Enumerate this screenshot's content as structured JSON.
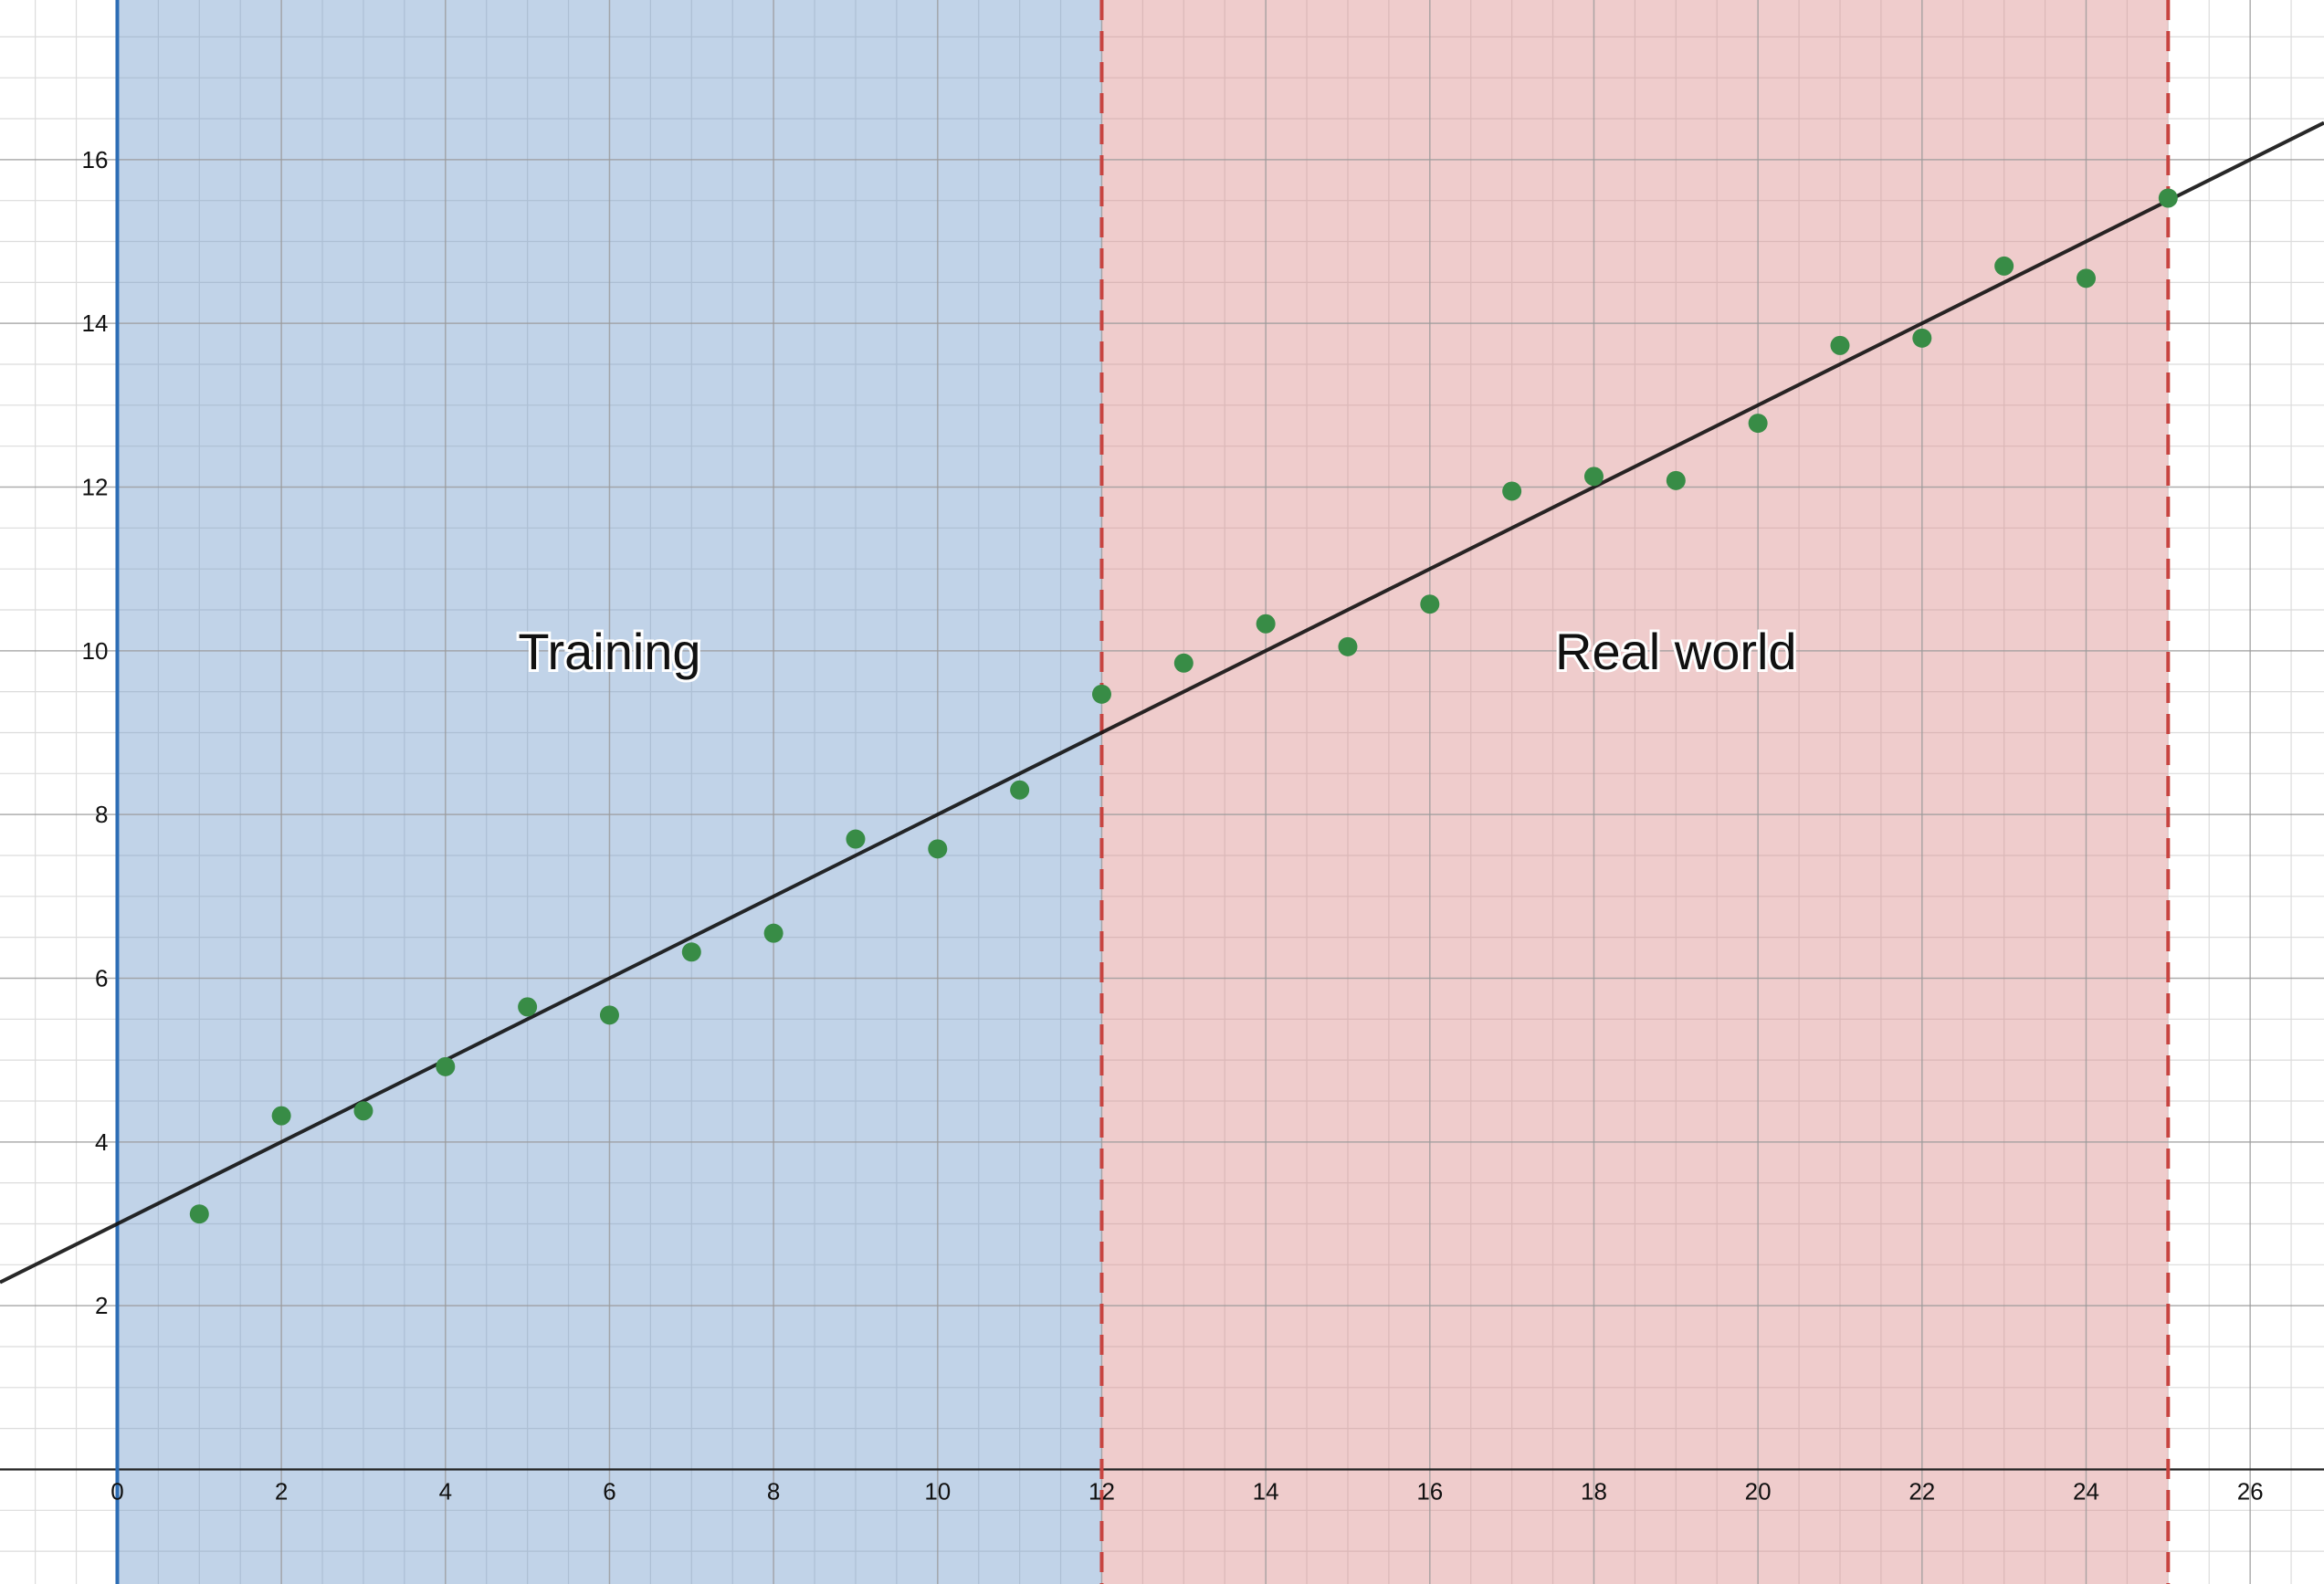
{
  "chart_data": {
    "type": "scatter",
    "xlim": [
      -1.43,
      26.9
    ],
    "ylim": [
      -1.4,
      17.95
    ],
    "grid": {
      "major_step": 2,
      "minor_step": 0.5
    },
    "x_ticks": [
      0,
      2,
      4,
      6,
      8,
      10,
      12,
      14,
      16,
      18,
      20,
      22,
      24,
      26
    ],
    "y_ticks": [
      2,
      4,
      6,
      8,
      10,
      12,
      14,
      16
    ],
    "x_tick_labels": [
      "0",
      "2",
      "4",
      "6",
      "8",
      "10",
      "12",
      "14",
      "16",
      "18",
      "20",
      "22",
      "24",
      "26"
    ],
    "y_tick_labels": [
      "2",
      "4",
      "6",
      "8",
      "10",
      "12",
      "14",
      "16"
    ],
    "regions": [
      {
        "label": "Training",
        "x_start": 0,
        "x_end": 12,
        "color": "#6c96c8"
      },
      {
        "label": "Real world",
        "x_start": 12,
        "x_end": 25,
        "color": "#d98686"
      }
    ],
    "region_labels": [
      {
        "text": "Training",
        "x": 6,
        "y": 10
      },
      {
        "text": "Real world",
        "x": 19,
        "y": 10
      }
    ],
    "boundaries": [
      {
        "x": 0,
        "color": "#2d6db5",
        "dashed": false
      },
      {
        "x": 12,
        "color": "#c74440",
        "dashed": true
      },
      {
        "x": 25,
        "color": "#c74440",
        "dashed": true
      }
    ],
    "fit_line": {
      "slope": 0.5,
      "intercept": 3,
      "color": "#111111"
    },
    "points": {
      "color": "#388c46",
      "x": [
        1,
        2,
        3,
        4,
        5,
        6,
        7,
        8,
        9,
        10,
        11,
        12,
        13,
        14,
        15,
        16,
        17,
        18,
        19,
        20,
        21,
        22,
        23,
        24,
        25
      ],
      "y": [
        3.12,
        4.32,
        4.38,
        4.92,
        5.65,
        5.55,
        6.32,
        6.55,
        7.7,
        7.58,
        8.3,
        9.47,
        9.85,
        10.33,
        10.05,
        10.57,
        11.95,
        12.13,
        12.08,
        12.78,
        13.73,
        13.82,
        14.7,
        14.55,
        15.53
      ]
    }
  }
}
